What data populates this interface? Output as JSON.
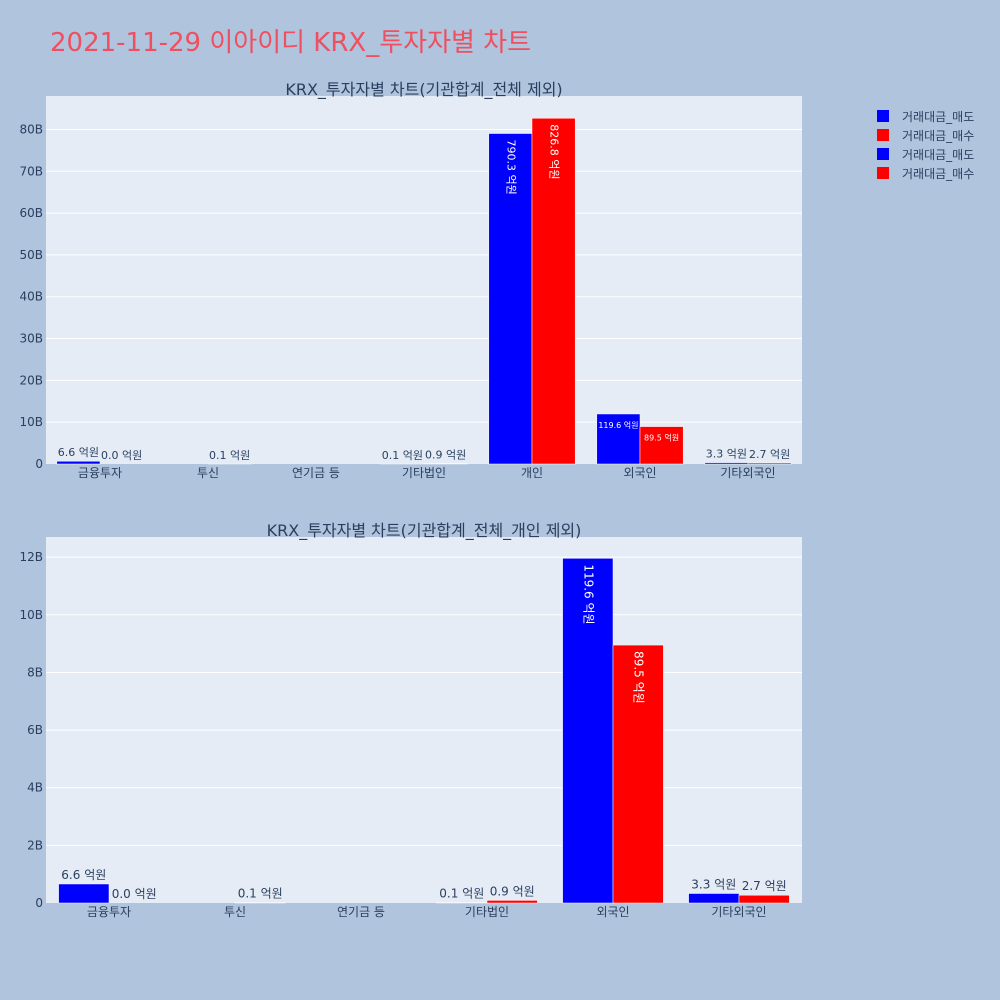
{
  "page_title": "2021-11-29 이아이디 KRX_투자자별 차트",
  "legend": [
    {
      "label": "거래대금_매도",
      "color": "#0000ff"
    },
    {
      "label": "거래대금_매수",
      "color": "#ff0000"
    },
    {
      "label": "거래대금_매도",
      "color": "#0000ff"
    },
    {
      "label": "거래대금_매수",
      "color": "#ff0000"
    }
  ],
  "colors": {
    "sell": "#0000ff",
    "buy": "#ff0000",
    "plot_bg": "#e5ecf6",
    "page_bg": "#b0c4de",
    "title": "#ef4f5f"
  },
  "chart_data": [
    {
      "type": "bar",
      "title": "KRX_투자자별 차트(기관합계_전체 제외)",
      "categories": [
        "금융투자",
        "투신",
        "연기금 등",
        "기타법인",
        "개인",
        "외국인",
        "기타외국인"
      ],
      "ylim": [
        0,
        88000000000
      ],
      "yticks": [
        0,
        10000000000,
        20000000000,
        30000000000,
        40000000000,
        50000000000,
        60000000000,
        70000000000,
        80000000000
      ],
      "ytick_labels": [
        "0",
        "10B",
        "20B",
        "30B",
        "40B",
        "50B",
        "60B",
        "70B",
        "80B"
      ],
      "grid": true,
      "series": [
        {
          "name": "거래대금_매도",
          "color": "#0000ff",
          "values": [
            660000000,
            0,
            0,
            10000000,
            79030000000,
            11960000000,
            330000000
          ],
          "labels": [
            "6.6 억원",
            "",
            "",
            "0.1 억원",
            "790.3 억원",
            "119.6 억원",
            "3.3 억원"
          ]
        },
        {
          "name": "거래대금_매수",
          "color": "#ff0000",
          "values": [
            0,
            10000000,
            0,
            90000000,
            82680000000,
            8950000000,
            270000000
          ],
          "labels": [
            "0.0 억원",
            "0.1 억원",
            "",
            "0.9 억원",
            "826.8 억원",
            "89.5 억원",
            "2.7 억원"
          ]
        }
      ]
    },
    {
      "type": "bar",
      "title": "KRX_투자자별 차트(기관합계_전체_개인 제외)",
      "categories": [
        "금융투자",
        "투신",
        "연기금 등",
        "기타법인",
        "외국인",
        "기타외국인"
      ],
      "ylim": [
        0,
        12700000000
      ],
      "yticks": [
        0,
        2000000000,
        4000000000,
        6000000000,
        8000000000,
        10000000000,
        12000000000
      ],
      "ytick_labels": [
        "0",
        "2B",
        "4B",
        "6B",
        "8B",
        "10B",
        "12B"
      ],
      "grid": true,
      "series": [
        {
          "name": "거래대금_매도",
          "color": "#0000ff",
          "values": [
            660000000,
            0,
            0,
            10000000,
            11960000000,
            330000000
          ],
          "labels": [
            "6.6 억원",
            "",
            "",
            "0.1 억원",
            "119.6 억원",
            "3.3 억원"
          ]
        },
        {
          "name": "거래대금_매수",
          "color": "#ff0000",
          "values": [
            0,
            10000000,
            0,
            90000000,
            8950000000,
            270000000
          ],
          "labels": [
            "0.0 억원",
            "0.1 억원",
            "",
            "0.9 억원",
            "89.5 억원",
            "2.7 억원"
          ]
        }
      ]
    }
  ]
}
